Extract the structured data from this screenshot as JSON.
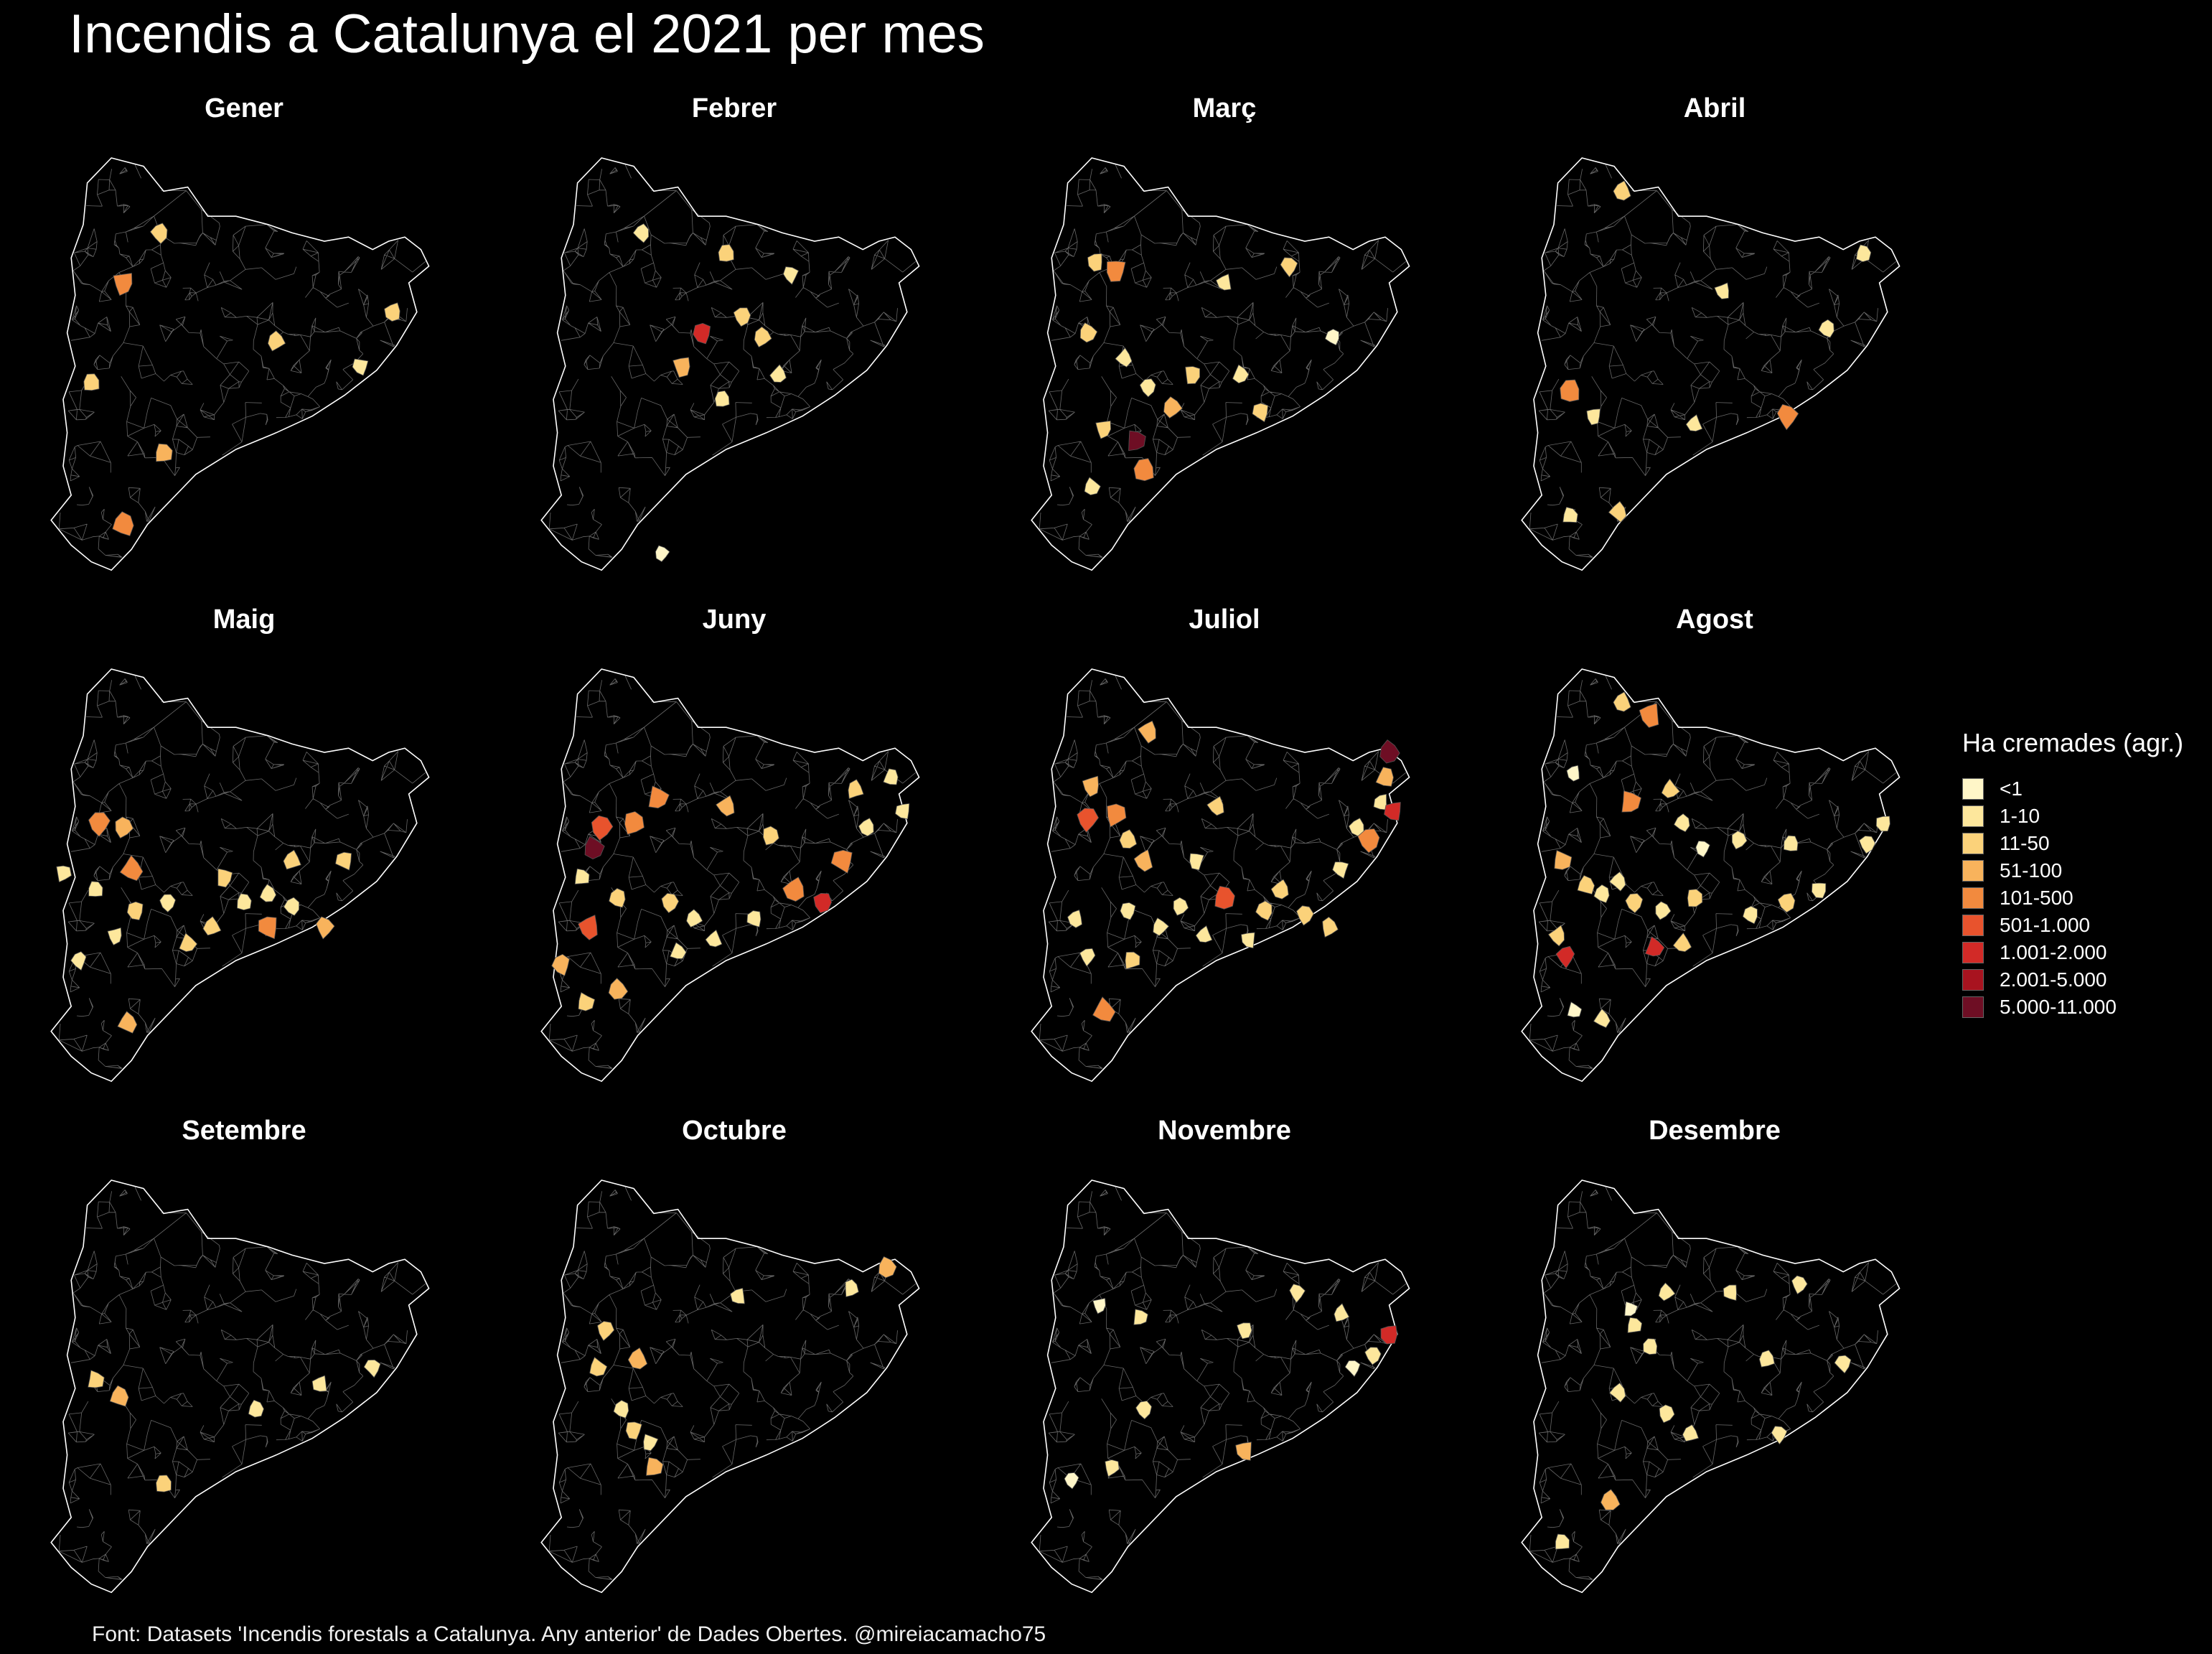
{
  "title": "Incendis a Catalunya el 2021 per mes",
  "caption": "Font: Datasets 'Incendis forestals a Catalunya. Any anterior' de Dades Obertes. @mireiacamacho75",
  "legend": {
    "title": "Ha cremades (agr.)",
    "items": [
      {
        "label": "<1",
        "color": "#FFF6C8"
      },
      {
        "label": "1-10",
        "color": "#FDE79C"
      },
      {
        "label": "11-50",
        "color": "#FBD27A"
      },
      {
        "label": "51-100",
        "color": "#F8B35C"
      },
      {
        "label": "101-500",
        "color": "#F28A3E"
      },
      {
        "label": "501-1.000",
        "color": "#E8532D"
      },
      {
        "label": "1.001-2.000",
        "color": "#D22A27"
      },
      {
        "label": "2.001-5.000",
        "color": "#A8131F"
      },
      {
        "label": "5.000-11.000",
        "color": "#6E0E24"
      }
    ]
  },
  "colors": {
    "background": "#000000",
    "borders": "#8a8a8a",
    "outline": "#ffffff"
  },
  "panels": [
    {
      "month": "Gener",
      "fires": [
        [
          0.2,
          0.3,
          4
        ],
        [
          0.29,
          0.18,
          2
        ],
        [
          0.87,
          0.37,
          2
        ],
        [
          0.79,
          0.5,
          1
        ],
        [
          0.2,
          0.88,
          4
        ],
        [
          0.3,
          0.71,
          3
        ],
        [
          0.58,
          0.44,
          2
        ],
        [
          0.12,
          0.54,
          2
        ]
      ]
    },
    {
      "month": "Febrer",
      "fires": [
        [
          0.27,
          0.18,
          1
        ],
        [
          0.42,
          0.42,
          6
        ],
        [
          0.37,
          0.5,
          3
        ],
        [
          0.52,
          0.38,
          2
        ],
        [
          0.47,
          0.58,
          1
        ],
        [
          0.57,
          0.43,
          2
        ],
        [
          0.32,
          0.95,
          0
        ],
        [
          0.64,
          0.28,
          1
        ],
        [
          0.61,
          0.52,
          1
        ],
        [
          0.48,
          0.23,
          2
        ]
      ]
    },
    {
      "month": "Març",
      "fires": [
        [
          0.18,
          0.25,
          2
        ],
        [
          0.23,
          0.27,
          4
        ],
        [
          0.16,
          0.42,
          2
        ],
        [
          0.28,
          0.68,
          8
        ],
        [
          0.31,
          0.55,
          1
        ],
        [
          0.42,
          0.52,
          2
        ],
        [
          0.54,
          0.52,
          1
        ],
        [
          0.2,
          0.65,
          2
        ],
        [
          0.77,
          0.43,
          0
        ],
        [
          0.5,
          0.3,
          1
        ],
        [
          0.3,
          0.75,
          4
        ],
        [
          0.17,
          0.79,
          1
        ],
        [
          0.37,
          0.6,
          3
        ],
        [
          0.59,
          0.61,
          2
        ],
        [
          0.25,
          0.48,
          1
        ],
        [
          0.66,
          0.26,
          2
        ]
      ]
    },
    {
      "month": "Abril",
      "fires": [
        [
          0.27,
          0.08,
          2
        ],
        [
          0.14,
          0.56,
          4
        ],
        [
          0.2,
          0.62,
          1
        ],
        [
          0.68,
          0.62,
          4
        ],
        [
          0.14,
          0.86,
          1
        ],
        [
          0.26,
          0.85,
          2
        ],
        [
          0.87,
          0.23,
          1
        ],
        [
          0.78,
          0.41,
          1
        ],
        [
          0.52,
          0.32,
          1
        ],
        [
          0.45,
          0.64,
          1
        ]
      ]
    },
    {
      "month": "Maig",
      "fires": [
        [
          0.14,
          0.37,
          4
        ],
        [
          0.2,
          0.38,
          3
        ],
        [
          0.05,
          0.49,
          1
        ],
        [
          0.13,
          0.53,
          1
        ],
        [
          0.22,
          0.48,
          4
        ],
        [
          0.31,
          0.56,
          1
        ],
        [
          0.45,
          0.5,
          2
        ],
        [
          0.5,
          0.56,
          1
        ],
        [
          0.56,
          0.54,
          1
        ],
        [
          0.62,
          0.57,
          1
        ],
        [
          0.56,
          0.62,
          4
        ],
        [
          0.7,
          0.62,
          3
        ],
        [
          0.36,
          0.66,
          2
        ],
        [
          0.42,
          0.62,
          2
        ],
        [
          0.18,
          0.64,
          1
        ],
        [
          0.23,
          0.58,
          2
        ],
        [
          0.09,
          0.7,
          1
        ],
        [
          0.21,
          0.85,
          3
        ],
        [
          0.62,
          0.46,
          2
        ],
        [
          0.75,
          0.46,
          2
        ]
      ]
    },
    {
      "month": "Juny",
      "fires": [
        [
          0.17,
          0.38,
          5
        ],
        [
          0.15,
          0.43,
          8
        ],
        [
          0.25,
          0.37,
          4
        ],
        [
          0.31,
          0.31,
          4
        ],
        [
          0.12,
          0.5,
          1
        ],
        [
          0.21,
          0.55,
          2
        ],
        [
          0.14,
          0.62,
          5
        ],
        [
          0.07,
          0.71,
          3
        ],
        [
          0.13,
          0.8,
          2
        ],
        [
          0.21,
          0.77,
          3
        ],
        [
          0.34,
          0.56,
          2
        ],
        [
          0.4,
          0.6,
          1
        ],
        [
          0.48,
          0.33,
          3
        ],
        [
          0.59,
          0.4,
          2
        ],
        [
          0.65,
          0.53,
          4
        ],
        [
          0.72,
          0.56,
          6
        ],
        [
          0.77,
          0.46,
          4
        ],
        [
          0.8,
          0.29,
          2
        ],
        [
          0.89,
          0.26,
          1
        ],
        [
          0.92,
          0.34,
          1
        ],
        [
          0.45,
          0.65,
          1
        ],
        [
          0.55,
          0.6,
          1
        ],
        [
          0.83,
          0.38,
          1
        ],
        [
          0.36,
          0.68,
          1
        ]
      ]
    },
    {
      "month": "Juliol",
      "fires": [
        [
          0.17,
          0.28,
          3
        ],
        [
          0.16,
          0.36,
          5
        ],
        [
          0.23,
          0.35,
          4
        ],
        [
          0.26,
          0.41,
          2
        ],
        [
          0.3,
          0.46,
          3
        ],
        [
          0.31,
          0.15,
          3
        ],
        [
          0.48,
          0.33,
          2
        ],
        [
          0.43,
          0.46,
          1
        ],
        [
          0.5,
          0.55,
          5
        ],
        [
          0.39,
          0.57,
          1
        ],
        [
          0.6,
          0.58,
          2
        ],
        [
          0.64,
          0.53,
          2
        ],
        [
          0.7,
          0.59,
          2
        ],
        [
          0.79,
          0.48,
          1
        ],
        [
          0.83,
          0.38,
          1
        ],
        [
          0.89,
          0.32,
          1
        ],
        [
          0.9,
          0.26,
          3
        ],
        [
          0.92,
          0.34,
          6
        ],
        [
          0.91,
          0.2,
          8
        ],
        [
          0.86,
          0.41,
          4
        ],
        [
          0.26,
          0.58,
          1
        ],
        [
          0.34,
          0.62,
          1
        ],
        [
          0.13,
          0.6,
          1
        ],
        [
          0.16,
          0.69,
          1
        ],
        [
          0.27,
          0.7,
          2
        ],
        [
          0.2,
          0.82,
          4
        ],
        [
          0.45,
          0.64,
          1
        ],
        [
          0.56,
          0.65,
          1
        ],
        [
          0.76,
          0.62,
          2
        ]
      ]
    },
    {
      "month": "Agost",
      "fires": [
        [
          0.27,
          0.08,
          2
        ],
        [
          0.34,
          0.11,
          4
        ],
        [
          0.15,
          0.25,
          0
        ],
        [
          0.29,
          0.32,
          4
        ],
        [
          0.39,
          0.29,
          2
        ],
        [
          0.42,
          0.37,
          1
        ],
        [
          0.47,
          0.43,
          0
        ],
        [
          0.56,
          0.41,
          1
        ],
        [
          0.69,
          0.42,
          1
        ],
        [
          0.12,
          0.46,
          3
        ],
        [
          0.18,
          0.52,
          2
        ],
        [
          0.22,
          0.54,
          1
        ],
        [
          0.3,
          0.56,
          2
        ],
        [
          0.11,
          0.64,
          2
        ],
        [
          0.13,
          0.69,
          6
        ],
        [
          0.37,
          0.58,
          1
        ],
        [
          0.45,
          0.55,
          2
        ],
        [
          0.59,
          0.59,
          1
        ],
        [
          0.68,
          0.56,
          2
        ],
        [
          0.76,
          0.53,
          1
        ],
        [
          0.88,
          0.42,
          1
        ],
        [
          0.92,
          0.37,
          1
        ],
        [
          0.35,
          0.67,
          6
        ],
        [
          0.42,
          0.66,
          2
        ],
        [
          0.15,
          0.82,
          0
        ],
        [
          0.22,
          0.84,
          1
        ],
        [
          0.26,
          0.51,
          1
        ]
      ]
    },
    {
      "month": "Setembre",
      "fires": [
        [
          0.13,
          0.48,
          2
        ],
        [
          0.19,
          0.52,
          3
        ],
        [
          0.3,
          0.73,
          2
        ],
        [
          0.53,
          0.55,
          1
        ],
        [
          0.69,
          0.49,
          1
        ],
        [
          0.82,
          0.45,
          1
        ]
      ]
    },
    {
      "month": "Octubre",
      "fires": [
        [
          0.18,
          0.36,
          2
        ],
        [
          0.16,
          0.45,
          2
        ],
        [
          0.26,
          0.43,
          3
        ],
        [
          0.22,
          0.55,
          1
        ],
        [
          0.25,
          0.6,
          2
        ],
        [
          0.29,
          0.63,
          1
        ],
        [
          0.3,
          0.69,
          3
        ],
        [
          0.88,
          0.21,
          3
        ],
        [
          0.79,
          0.26,
          1
        ],
        [
          0.51,
          0.28,
          1
        ]
      ]
    },
    {
      "month": "Novembre",
      "fires": [
        [
          0.19,
          0.3,
          0
        ],
        [
          0.29,
          0.33,
          1
        ],
        [
          0.55,
          0.36,
          1
        ],
        [
          0.68,
          0.27,
          1
        ],
        [
          0.79,
          0.32,
          1
        ],
        [
          0.91,
          0.37,
          6
        ],
        [
          0.87,
          0.42,
          1
        ],
        [
          0.82,
          0.45,
          0
        ],
        [
          0.12,
          0.72,
          0
        ],
        [
          0.22,
          0.69,
          1
        ],
        [
          0.55,
          0.65,
          3
        ],
        [
          0.3,
          0.55,
          1
        ]
      ]
    },
    {
      "month": "Desembre",
      "fires": [
        [
          0.29,
          0.31,
          0
        ],
        [
          0.38,
          0.27,
          1
        ],
        [
          0.54,
          0.27,
          1
        ],
        [
          0.71,
          0.25,
          1
        ],
        [
          0.3,
          0.35,
          1
        ],
        [
          0.34,
          0.4,
          1
        ],
        [
          0.63,
          0.43,
          1
        ],
        [
          0.82,
          0.44,
          1
        ],
        [
          0.26,
          0.51,
          1
        ],
        [
          0.38,
          0.56,
          1
        ],
        [
          0.44,
          0.61,
          1
        ],
        [
          0.24,
          0.77,
          3
        ],
        [
          0.12,
          0.87,
          1
        ],
        [
          0.66,
          0.61,
          1
        ]
      ]
    }
  ]
}
